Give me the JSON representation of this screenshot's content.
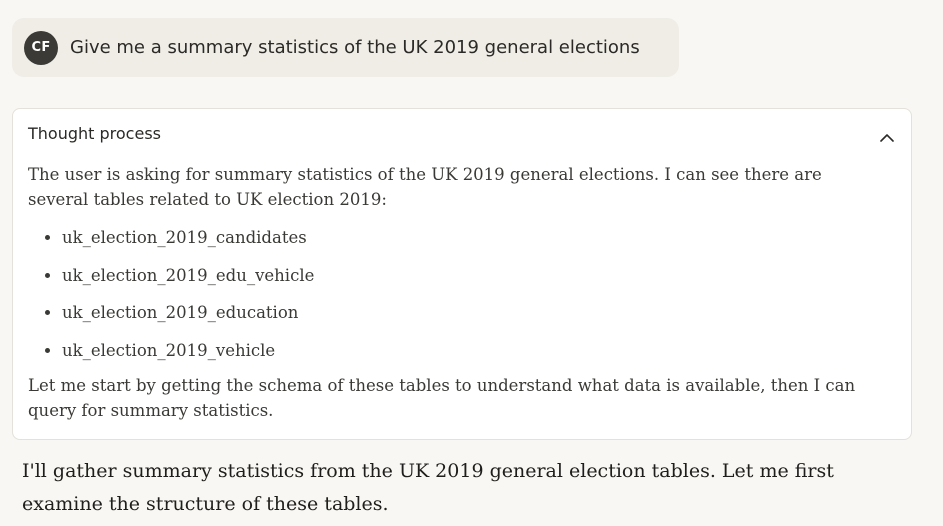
{
  "user_message": {
    "avatar_initials": "CF",
    "text": "Give me a summary statistics of the UK 2019 general elections"
  },
  "thought_process": {
    "title": "Thought process",
    "collapse_icon": "chevron-up-icon",
    "intro": "The user is asking for summary statistics of the UK 2019 general elections. I can see there are several tables related to UK election 2019:",
    "tables": [
      "uk_election_2019_candidates",
      "uk_election_2019_edu_vehicle",
      "uk_election_2019_education",
      "uk_election_2019_vehicle"
    ],
    "outro": "Let me start by getting the schema of these tables to understand what data is available, then I can query for summary statistics."
  },
  "assistant_reply": {
    "text": "I'll gather summary statistics from the UK 2019 general election tables. Let me first examine the structure of these tables."
  },
  "colors": {
    "page_background": "#f8f7f3",
    "user_bubble": "#efede6",
    "avatar": "#3b3a36",
    "card_border": "#e3e1d9"
  }
}
